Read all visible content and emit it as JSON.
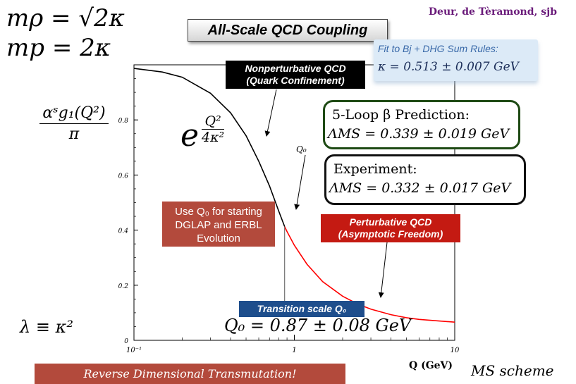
{
  "masses": {
    "line1": "mρ = √2κ",
    "line2": "mp = 2κ"
  },
  "authors": "Deur, de Tèramond, sjb",
  "title": "All-Scale QCD Coupling",
  "fit_box": {
    "label": "Fit to Bj + DHG Sum Rules:",
    "value": "κ = 0.513 ± 0.007 GeV"
  },
  "nonpert_box": {
    "line1": "Nonperturbative QCD",
    "line2": "(Quark Confinement)"
  },
  "loop_box": {
    "line1": "5-Loop β Prediction:",
    "line2": "ΛMS = 0.339 ± 0.019 GeV"
  },
  "exp_box": {
    "line1": "Experiment:",
    "line2": "ΛMS = 0.332 ± 0.017 GeV"
  },
  "q0_box": {
    "line1": "Use Q₀ for starting",
    "line2": "DGLAP  and ERBL",
    "line3": "Evolution"
  },
  "pert_box": {
    "line1": "Perturbative QCD",
    "line2": "(Asymptotic Freedom)"
  },
  "transition_label": "Transition scale Q₀",
  "q0_equation": "Q₀ = 0.87 ± 0.08 GeV",
  "reverse_label": "Reverse Dimensional Transmutation!",
  "scheme_label": "MS scheme",
  "lambda_eq": "λ ≡ κ²",
  "ylabel": {
    "num": "αˢg₁(Q²)",
    "den": "π"
  },
  "gaussian": {
    "base": "e",
    "num": "Q²",
    "den": "4κ²"
  },
  "q0_marker": "Q₀",
  "chart_data": {
    "type": "line",
    "xlabel": "Q (GeV)",
    "ylabel": "αˢg₁(Q²)/π",
    "xscale": "log",
    "xlim": [
      0.1,
      10
    ],
    "ylim": [
      0,
      1
    ],
    "xticks": [
      {
        "value": 0.1,
        "label": "10⁻¹"
      },
      {
        "value": 1,
        "label": "1"
      },
      {
        "value": 10,
        "label": "10"
      }
    ],
    "yticks": [
      {
        "value": 0,
        "label": "0"
      },
      {
        "value": 0.2,
        "label": "0.2"
      },
      {
        "value": 0.4,
        "label": "0.4"
      },
      {
        "value": 0.6,
        "label": "0.6"
      },
      {
        "value": 0.8,
        "label": "0.8"
      }
    ],
    "series": [
      {
        "color": "#000000",
        "points": [
          [
            0.1,
            0.987
          ],
          [
            0.15,
            0.974
          ],
          [
            0.2,
            0.955
          ],
          [
            0.3,
            0.897
          ],
          [
            0.4,
            0.826
          ],
          [
            0.5,
            0.743
          ],
          [
            0.6,
            0.65
          ],
          [
            0.7,
            0.56
          ],
          [
            0.8,
            0.468
          ],
          [
            0.87,
            0.413
          ]
        ]
      },
      {
        "color": "#ff0000",
        "points": [
          [
            0.87,
            0.413
          ],
          [
            0.9,
            0.395
          ],
          [
            1.0,
            0.345
          ],
          [
            1.2,
            0.276
          ],
          [
            1.5,
            0.213
          ],
          [
            2,
            0.16
          ],
          [
            2.5,
            0.131
          ],
          [
            3,
            0.113
          ],
          [
            4,
            0.093
          ],
          [
            5,
            0.082
          ],
          [
            6,
            0.076
          ],
          [
            8,
            0.07
          ],
          [
            10,
            0.066
          ]
        ]
      }
    ],
    "q0": 0.87,
    "grid": false
  }
}
